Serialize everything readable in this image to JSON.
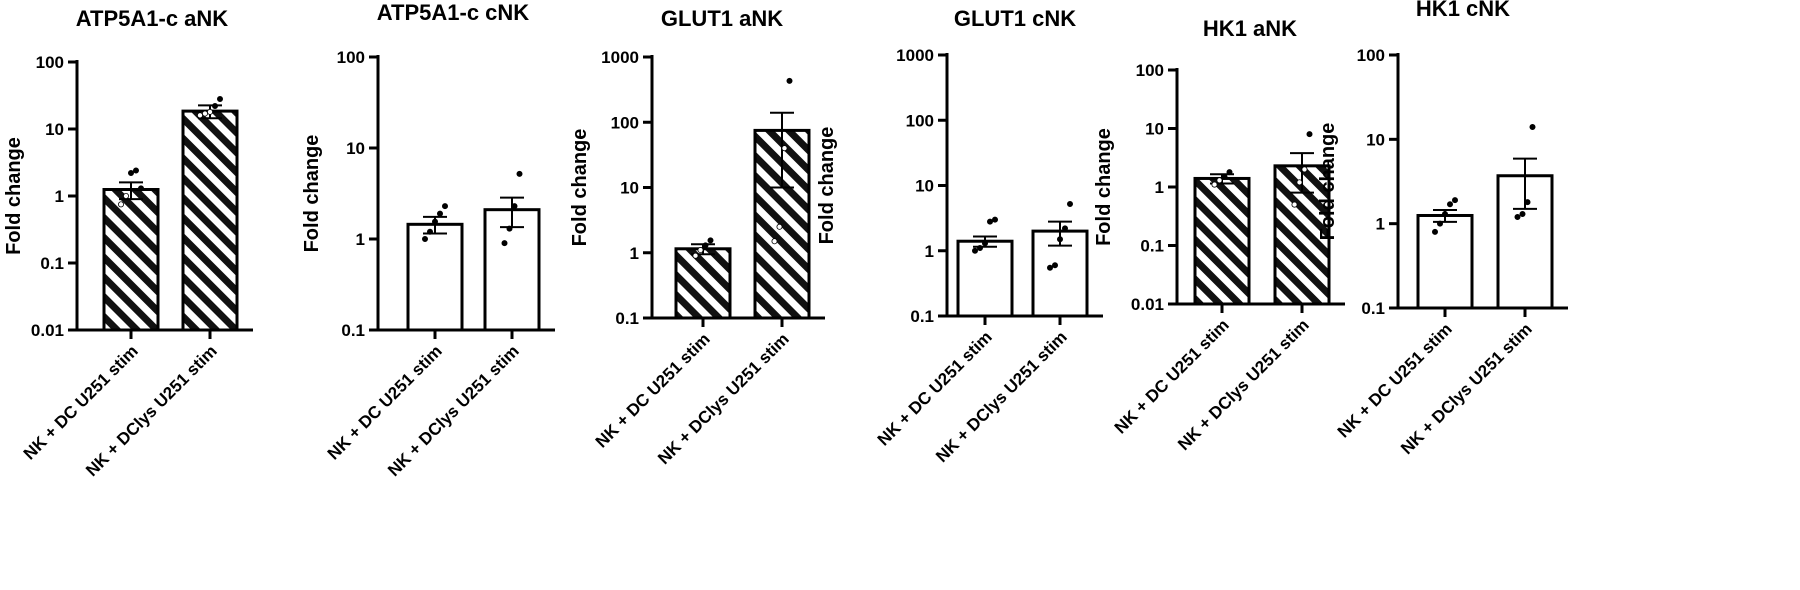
{
  "chart_data": [
    {
      "type": "bar",
      "title": "ATP5A1-c aNK",
      "ylabel": "Fold change",
      "yscale": "log",
      "ylim": [
        0.01,
        100
      ],
      "yticks": [
        "0.01",
        "0.1",
        "1",
        "10",
        "100"
      ],
      "pattern": "hatched",
      "categories": [
        "NK + DC U251 stim",
        "NK + DClys U251 stim"
      ],
      "values": [
        1.25,
        18.5
      ],
      "sem": [
        0.35,
        4.0
      ],
      "points": [
        [
          0.75,
          1.0,
          2.2,
          2.4,
          1.3
        ],
        [
          16,
          17,
          18,
          22,
          28
        ]
      ]
    },
    {
      "type": "bar",
      "title": "ATP5A1-c cNK",
      "ylabel": "Fold change",
      "yscale": "log",
      "ylim": [
        0.1,
        100
      ],
      "yticks": [
        "0.1",
        "1",
        "10",
        "100"
      ],
      "pattern": "open",
      "categories": [
        "NK + DC U251 stim",
        "NK + DClys U251 stim"
      ],
      "values": [
        1.45,
        2.1
      ],
      "sem": [
        0.3,
        0.75
      ],
      "points": [
        [
          1.0,
          1.2,
          1.55,
          1.9,
          2.3
        ],
        [
          0.9,
          1.3,
          2.3,
          5.2
        ]
      ]
    },
    {
      "type": "bar",
      "title": "GLUT1 aNK",
      "ylabel": "Fold change",
      "yscale": "log",
      "ylim": [
        0.1,
        1000
      ],
      "yticks": [
        "0.1",
        "1",
        "10",
        "100",
        "1000"
      ],
      "pattern": "hatched",
      "categories": [
        "NK + DC U251 stim",
        "NK + DClys U251 stim"
      ],
      "values": [
        1.15,
        75
      ],
      "sem": [
        0.2,
        65
      ],
      "points": [
        [
          0.9,
          1.1,
          1.3,
          1.55
        ],
        [
          1.5,
          2.5,
          40,
          430
        ]
      ]
    },
    {
      "type": "bar",
      "title": "GLUT1 cNK",
      "ylabel": "Fold change",
      "yscale": "log",
      "ylim": [
        0.1,
        1000
      ],
      "yticks": [
        "0.1",
        "1",
        "10",
        "100",
        "1000"
      ],
      "pattern": "open",
      "categories": [
        "NK + DC U251 stim",
        "NK + DClys U251 stim"
      ],
      "values": [
        1.4,
        2.0
      ],
      "sem": [
        0.25,
        0.8
      ],
      "points": [
        [
          1.0,
          1.1,
          1.3,
          2.8,
          3.0
        ],
        [
          0.55,
          0.6,
          1.5,
          2.2,
          5.2
        ]
      ]
    },
    {
      "type": "bar",
      "title": "HK1 aNK",
      "ylabel": "Fold change",
      "yscale": "log",
      "ylim": [
        0.01,
        100
      ],
      "yticks": [
        "0.01",
        "0.1",
        "1",
        "10",
        "100"
      ],
      "pattern": "hatched",
      "categories": [
        "NK + DC U251 stim",
        "NK + DClys U251 stim"
      ],
      "values": [
        1.4,
        2.3
      ],
      "sem": [
        0.25,
        1.5
      ],
      "points": [
        [
          1.1,
          1.3,
          1.5,
          1.8
        ],
        [
          0.5,
          1.2,
          2.0,
          8.0
        ]
      ]
    },
    {
      "type": "bar",
      "title": "HK1 cNK",
      "ylabel": "Fold change",
      "yscale": "log",
      "ylim": [
        0.1,
        100
      ],
      "yticks": [
        "0.1",
        "1",
        "10",
        "100"
      ],
      "pattern": "open",
      "categories": [
        "NK + DC U251 stim",
        "NK + DClys U251 stim"
      ],
      "values": [
        1.25,
        3.7
      ],
      "sem": [
        0.2,
        2.2
      ],
      "points": [
        [
          0.8,
          1.0,
          1.3,
          1.7,
          1.9
        ],
        [
          1.2,
          1.3,
          1.8,
          14
        ]
      ]
    }
  ]
}
